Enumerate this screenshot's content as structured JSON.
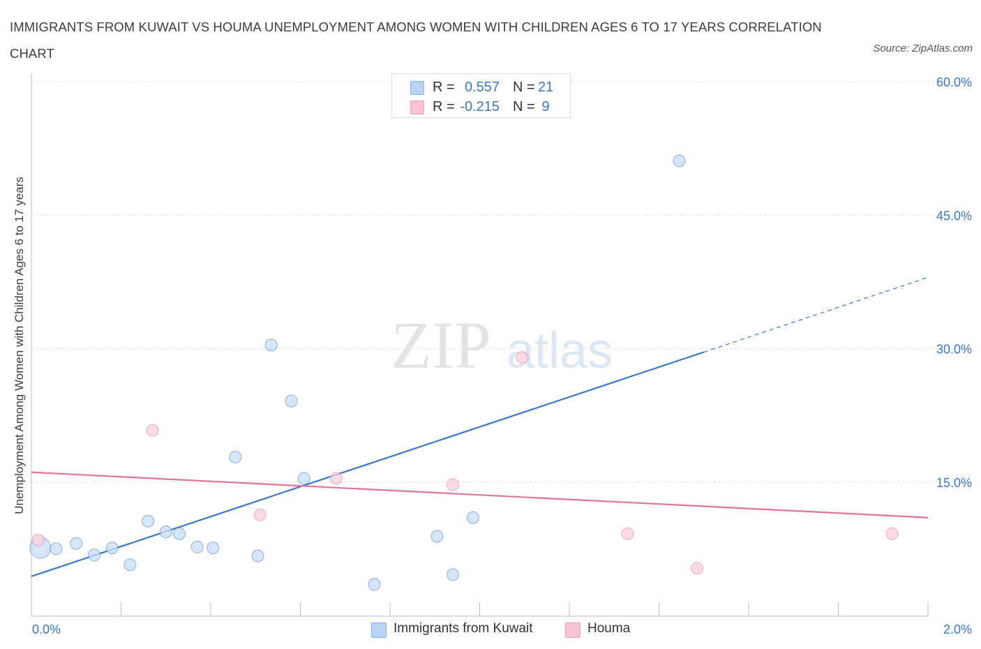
{
  "title": "IMMIGRANTS FROM KUWAIT VS HOUMA UNEMPLOYMENT AMONG WOMEN WITH CHILDREN AGES 6 TO 17 YEARS CORRELATION CHART",
  "source": "Source: ZipAtlas.com",
  "watermark": {
    "zip": "ZIP",
    "atlas": "atlas"
  },
  "legend": {
    "rows": [
      {
        "r_label": "R =",
        "r_value": "0.557",
        "n_label": "N =",
        "n_value": "21",
        "color": "#b9d3f5",
        "border": "#8ab2e6"
      },
      {
        "r_label": "R =",
        "r_value": "-0.215",
        "n_label": "N =",
        "n_value": "9",
        "color": "#f8c4d4",
        "border": "#ee9fb8"
      }
    ]
  },
  "bottom_legend": [
    {
      "label": "Immigrants from Kuwait",
      "color": "#b9d3f5",
      "border": "#8ab2e6"
    },
    {
      "label": "Houma",
      "color": "#f8c4d4",
      "border": "#ee9fb8"
    }
  ],
  "chart_data": {
    "type": "scatter",
    "xlabel": "",
    "ylabel": "Unemployment Among Women with Children Ages 6 to 17 years",
    "xlim": [
      0,
      2.0
    ],
    "ylim": [
      0,
      60
    ],
    "x_tick_labels": [
      {
        "value": 0,
        "label": "0.0%"
      },
      {
        "value": 2.0,
        "label": "2.0%"
      }
    ],
    "y_tick_labels": [
      {
        "value": 15,
        "label": "15.0%"
      },
      {
        "value": 30,
        "label": "30.0%"
      },
      {
        "value": 45,
        "label": "45.0%"
      },
      {
        "value": 60,
        "label": "60.0%"
      }
    ],
    "grid": true,
    "series": [
      {
        "name": "Immigrants from Kuwait",
        "color": "#3a78c9",
        "fill": "#c9dcf6",
        "points": [
          {
            "x": 0.02,
            "y": 7.6,
            "big": true
          },
          {
            "x": 0.055,
            "y": 7.5
          },
          {
            "x": 0.1,
            "y": 8.1
          },
          {
            "x": 0.14,
            "y": 6.8
          },
          {
            "x": 0.18,
            "y": 7.6
          },
          {
            "x": 0.22,
            "y": 5.7
          },
          {
            "x": 0.26,
            "y": 10.6
          },
          {
            "x": 0.3,
            "y": 9.4
          },
          {
            "x": 0.33,
            "y": 9.2
          },
          {
            "x": 0.37,
            "y": 7.7
          },
          {
            "x": 0.405,
            "y": 7.6
          },
          {
            "x": 0.455,
            "y": 17.8
          },
          {
            "x": 0.505,
            "y": 6.7
          },
          {
            "x": 0.535,
            "y": 30.4
          },
          {
            "x": 0.58,
            "y": 24.1
          },
          {
            "x": 0.608,
            "y": 15.4
          },
          {
            "x": 0.765,
            "y": 3.5
          },
          {
            "x": 0.905,
            "y": 8.9
          },
          {
            "x": 0.94,
            "y": 4.6
          },
          {
            "x": 0.985,
            "y": 11.0
          },
          {
            "x": 1.445,
            "y": 51.1
          }
        ],
        "trend": {
          "x0": 0.0,
          "y0": 4.4,
          "x1": 1.5,
          "y1": 29.6,
          "dashed_to_x": 2.0,
          "dashed_to_y": 38.0
        }
      },
      {
        "name": "Houma",
        "color": "#e2739a",
        "fill": "#f9d0dd",
        "points": [
          {
            "x": 0.015,
            "y": 8.5
          },
          {
            "x": 0.27,
            "y": 20.8
          },
          {
            "x": 0.51,
            "y": 11.3
          },
          {
            "x": 0.68,
            "y": 15.4
          },
          {
            "x": 1.095,
            "y": 29.0
          },
          {
            "x": 0.94,
            "y": 14.7
          },
          {
            "x": 1.33,
            "y": 9.2
          },
          {
            "x": 1.485,
            "y": 5.3
          },
          {
            "x": 1.92,
            "y": 9.2
          }
        ],
        "trend": {
          "x0": 0.0,
          "y0": 16.1,
          "x1": 2.0,
          "y1": 11.0
        }
      }
    ]
  }
}
